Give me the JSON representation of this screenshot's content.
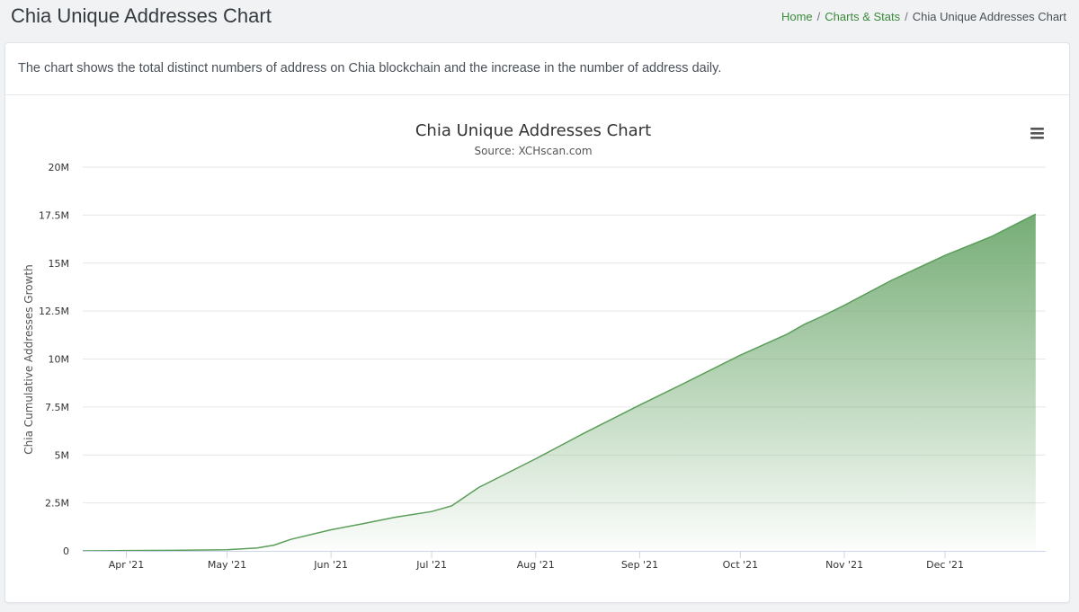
{
  "page": {
    "title": "Chia Unique Addresses Chart",
    "breadcrumb": [
      "Home",
      "Charts & Stats",
      "Chia Unique Addresses Chart"
    ]
  },
  "card": {
    "description": "The chart shows the total distinct numbers of address on Chia blockchain and the increase in the number of address daily."
  },
  "colors": {
    "accent": "#3a8a3a",
    "series": "#5a9e5a",
    "area_top": "#6ea86e",
    "grid": "#e6e6e6",
    "text": "#333333"
  },
  "chart_data": {
    "type": "area",
    "title": "Chia Unique Addresses Chart",
    "subtitle": "Source: XCHscan.com",
    "xlabel": "",
    "ylabel": "Chia Cumulative Addresses Growth",
    "menu_icon": "hamburger-menu-icon",
    "ylim": [
      0,
      20000000
    ],
    "yticks": [
      0,
      2500000,
      5000000,
      7500000,
      10000000,
      12500000,
      15000000,
      17500000,
      20000000
    ],
    "ytick_labels": [
      "0",
      "2.5M",
      "5M",
      "7.5M",
      "10M",
      "12.5M",
      "15M",
      "17.5M",
      "20M"
    ],
    "xlim": [
      "2021-03-19",
      "2021-12-31"
    ],
    "xticks": [
      "2021-04-01",
      "2021-05-01",
      "2021-06-01",
      "2021-07-01",
      "2021-08-01",
      "2021-09-01",
      "2021-10-01",
      "2021-11-01",
      "2021-12-01"
    ],
    "xtick_labels": [
      "Apr '21",
      "May '21",
      "Jun '21",
      "Jul '21",
      "Aug '21",
      "Sep '21",
      "Oct '21",
      "Nov '21",
      "Dec '21"
    ],
    "grid": true,
    "legend": "none",
    "series": [
      {
        "name": "Chia Cumulative Addresses Growth",
        "x": [
          "2021-03-19",
          "2021-04-01",
          "2021-04-15",
          "2021-05-01",
          "2021-05-10",
          "2021-05-15",
          "2021-05-20",
          "2021-06-01",
          "2021-06-10",
          "2021-06-20",
          "2021-07-01",
          "2021-07-07",
          "2021-07-15",
          "2021-08-01",
          "2021-08-15",
          "2021-09-01",
          "2021-09-15",
          "2021-10-01",
          "2021-10-15",
          "2021-10-20",
          "2021-10-25",
          "2021-11-01",
          "2021-11-15",
          "2021-12-01",
          "2021-12-15",
          "2021-12-28"
        ],
        "values": [
          0,
          20000,
          30000,
          60000,
          150000,
          300000,
          600000,
          1100000,
          1400000,
          1750000,
          2050000,
          2350000,
          3300000,
          4800000,
          6100000,
          7600000,
          8800000,
          10200000,
          11300000,
          11800000,
          12200000,
          12800000,
          14100000,
          15400000,
          16400000,
          17550000
        ]
      }
    ]
  }
}
